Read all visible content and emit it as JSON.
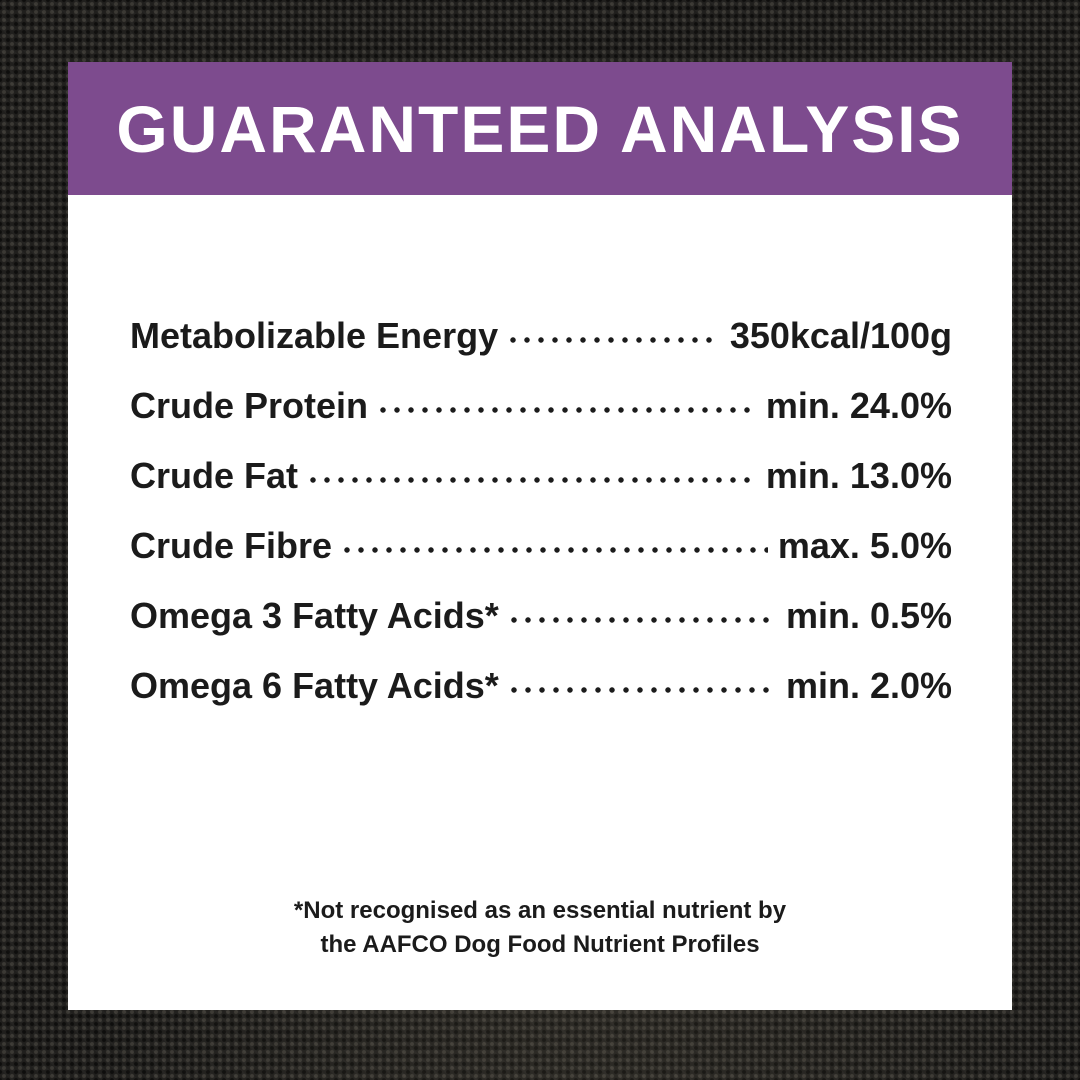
{
  "header": {
    "title": "GUARANTEED ANALYSIS"
  },
  "table": {
    "rows": [
      {
        "label": "Metabolizable Energy",
        "value": "350kcal/100g"
      },
      {
        "label": "Crude Protein",
        "value": "min. 24.0%"
      },
      {
        "label": "Crude Fat",
        "value": "min. 13.0%"
      },
      {
        "label": "Crude Fibre",
        "value": "max. 5.0%"
      },
      {
        "label": "Omega 3 Fatty Acids*",
        "value": "min. 0.5%"
      },
      {
        "label": "Omega 6 Fatty Acids*",
        "value": "min. 2.0%"
      }
    ]
  },
  "footnote": {
    "line1": "*Not recognised as an essential nutrient by",
    "line2": "the AAFCO Dog Food Nutrient Profiles"
  },
  "colors": {
    "accent_purple": "#7d4b8e",
    "text": "#1b1b1b",
    "card": "#ffffff",
    "background": "#201f1d"
  }
}
